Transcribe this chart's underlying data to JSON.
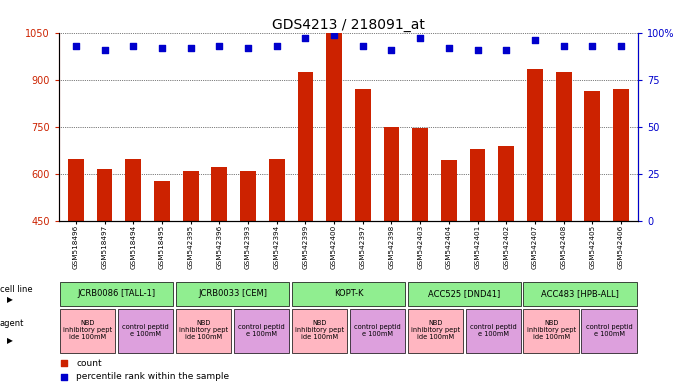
{
  "title": "GDS4213 / 218091_at",
  "samples": [
    "GSM518496",
    "GSM518497",
    "GSM518494",
    "GSM518495",
    "GSM542395",
    "GSM542396",
    "GSM542393",
    "GSM542394",
    "GSM542399",
    "GSM542400",
    "GSM542397",
    "GSM542398",
    "GSM542403",
    "GSM542404",
    "GSM542401",
    "GSM542402",
    "GSM542407",
    "GSM542408",
    "GSM542405",
    "GSM542406"
  ],
  "counts": [
    648,
    615,
    648,
    577,
    610,
    620,
    608,
    648,
    925,
    1050,
    870,
    750,
    745,
    645,
    678,
    688,
    935,
    925,
    865,
    870
  ],
  "percentiles": [
    93,
    91,
    93,
    92,
    92,
    93,
    92,
    93,
    97,
    99,
    93,
    91,
    97,
    92,
    91,
    91,
    96,
    93,
    93,
    93
  ],
  "cell_lines": [
    {
      "label": "JCRB0086 [TALL-1]",
      "start": 0,
      "end": 4,
      "color": "#90EE90"
    },
    {
      "label": "JCRB0033 [CEM]",
      "start": 4,
      "end": 8,
      "color": "#90EE90"
    },
    {
      "label": "KOPT-K",
      "start": 8,
      "end": 12,
      "color": "#90EE90"
    },
    {
      "label": "ACC525 [DND41]",
      "start": 12,
      "end": 16,
      "color": "#90EE90"
    },
    {
      "label": "ACC483 [HPB-ALL]",
      "start": 16,
      "end": 20,
      "color": "#90EE90"
    }
  ],
  "agents": [
    {
      "label": "NBD\ninhibitory pept\nide 100mM",
      "start": 0,
      "end": 2,
      "color": "#FFB6C1"
    },
    {
      "label": "control peptid\ne 100mM",
      "start": 2,
      "end": 4,
      "color": "#DDA0DD"
    },
    {
      "label": "NBD\ninhibitory pept\nide 100mM",
      "start": 4,
      "end": 6,
      "color": "#FFB6C1"
    },
    {
      "label": "control peptid\ne 100mM",
      "start": 6,
      "end": 8,
      "color": "#DDA0DD"
    },
    {
      "label": "NBD\ninhibitory pept\nide 100mM",
      "start": 8,
      "end": 10,
      "color": "#FFB6C1"
    },
    {
      "label": "control peptid\ne 100mM",
      "start": 10,
      "end": 12,
      "color": "#DDA0DD"
    },
    {
      "label": "NBD\ninhibitory pept\nide 100mM",
      "start": 12,
      "end": 14,
      "color": "#FFB6C1"
    },
    {
      "label": "control peptid\ne 100mM",
      "start": 14,
      "end": 16,
      "color": "#DDA0DD"
    },
    {
      "label": "NBD\ninhibitory pept\nide 100mM",
      "start": 16,
      "end": 18,
      "color": "#FFB6C1"
    },
    {
      "label": "control peptid\ne 100mM",
      "start": 18,
      "end": 20,
      "color": "#DDA0DD"
    }
  ],
  "ylim_left": [
    450,
    1050
  ],
  "yticks_left": [
    450,
    600,
    750,
    900,
    1050
  ],
  "ylim_right": [
    0,
    100
  ],
  "yticks_right": [
    0,
    25,
    50,
    75,
    100
  ],
  "bar_color": "#CC2200",
  "dot_color": "#0000CC",
  "grid_color": "black",
  "bg_color": "white",
  "title_fontsize": 10,
  "tick_fontsize": 7,
  "label_fontsize": 7
}
